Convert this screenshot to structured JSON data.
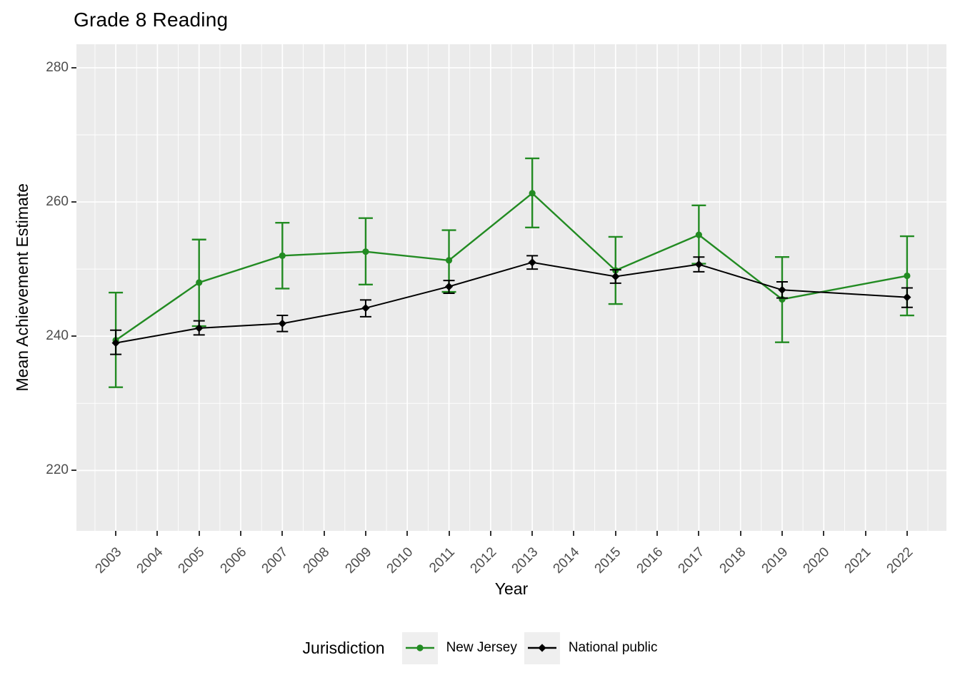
{
  "title": "Grade 8 Reading",
  "colors": {
    "new_jersey": "#228B22",
    "national_public": "#000000",
    "panel_bg": "#EBEBEB",
    "grid": "#FFFFFF",
    "tick_text": "#4D4D4D",
    "legend_key_bg": "#EFEFEF"
  },
  "legend": {
    "title": "Jurisdiction"
  },
  "chart_data": {
    "type": "line",
    "title": "Grade 8 Reading",
    "xlabel": "Year",
    "ylabel": "Mean Achievement Estimate",
    "x_ticks": [
      2003,
      2004,
      2005,
      2006,
      2007,
      2008,
      2009,
      2010,
      2011,
      2012,
      2013,
      2014,
      2015,
      2016,
      2017,
      2018,
      2019,
      2020,
      2021,
      2022
    ],
    "y_ticks": [
      220,
      240,
      260,
      280
    ],
    "y_minor_ticks": [
      230,
      250,
      270
    ],
    "x_minor_step": 0.5,
    "xlim": [
      2002.055,
      2022.945
    ],
    "ylim": [
      211.0,
      283.5
    ],
    "grid": true,
    "legend_position": "bottom",
    "legend_title": "Jurisdiction",
    "series": [
      {
        "name": "New Jersey",
        "color": "#228B22",
        "marker": "circle",
        "x": [
          2003,
          2005,
          2007,
          2009,
          2011,
          2013,
          2015,
          2017,
          2019,
          2022
        ],
        "y": [
          239.4,
          248.0,
          252.0,
          252.6,
          251.3,
          261.3,
          249.8,
          255.1,
          245.5,
          249.0
        ],
        "err_low": [
          232.4,
          241.5,
          247.1,
          247.7,
          246.6,
          256.2,
          244.8,
          250.8,
          239.1,
          243.1
        ],
        "err_high": [
          246.5,
          254.4,
          256.9,
          257.6,
          255.8,
          266.5,
          254.8,
          259.5,
          251.8,
          254.9
        ]
      },
      {
        "name": "National public",
        "color": "#000000",
        "marker": "diamond",
        "x": [
          2003,
          2005,
          2007,
          2009,
          2011,
          2013,
          2015,
          2017,
          2019,
          2022
        ],
        "y": [
          239.0,
          241.2,
          241.9,
          244.2,
          247.4,
          251.0,
          248.9,
          250.7,
          246.9,
          245.8
        ],
        "err_low": [
          237.3,
          240.2,
          240.7,
          242.9,
          246.4,
          250.0,
          247.9,
          249.6,
          245.7,
          244.3
        ],
        "err_high": [
          240.9,
          242.3,
          243.1,
          245.4,
          248.3,
          252.0,
          249.9,
          251.8,
          248.1,
          247.2
        ]
      }
    ]
  }
}
